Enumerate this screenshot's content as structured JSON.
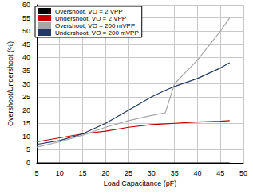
{
  "chart_data": {
    "type": "line",
    "x_label": "Load Capacitance (pF)",
    "y_label": "Overshoot/Undershoot (%)",
    "x": [
      5,
      10,
      15,
      20,
      25,
      30,
      33,
      35,
      40,
      45,
      47
    ],
    "series": [
      {
        "name": "Overshoot, VO = 2 VPP",
        "color": "#000000",
        "values": [
          0,
          0,
          0,
          0,
          0,
          0,
          0,
          0,
          0,
          0,
          0
        ]
      },
      {
        "name": "Undershoot, VO = 2 VPP",
        "color": "#c00000",
        "values": [
          8,
          9.5,
          11,
          12,
          13.5,
          14.5,
          14.8,
          15,
          15.5,
          15.8,
          16
        ]
      },
      {
        "name": "Overshoot, VO = 200 mVPP",
        "color": "#a6a6a6",
        "values": [
          6,
          8,
          10.5,
          13.5,
          16,
          18,
          19,
          30,
          39,
          50,
          55
        ]
      },
      {
        "name": "Undershoot, VO = 200 mVPP",
        "color": "#1f3864",
        "values": [
          7,
          8.5,
          11,
          15,
          20,
          25,
          27.5,
          29,
          32,
          36,
          38
        ]
      }
    ],
    "xlim": [
      5,
      50
    ],
    "xticks": [
      5,
      10,
      15,
      20,
      25,
      30,
      35,
      40,
      45,
      50
    ],
    "ylim": [
      0,
      60
    ],
    "yticks": [
      0,
      5,
      10,
      15,
      20,
      25,
      30,
      35,
      40,
      45,
      50,
      55,
      60
    ],
    "grid": true,
    "legend": "upper left"
  }
}
